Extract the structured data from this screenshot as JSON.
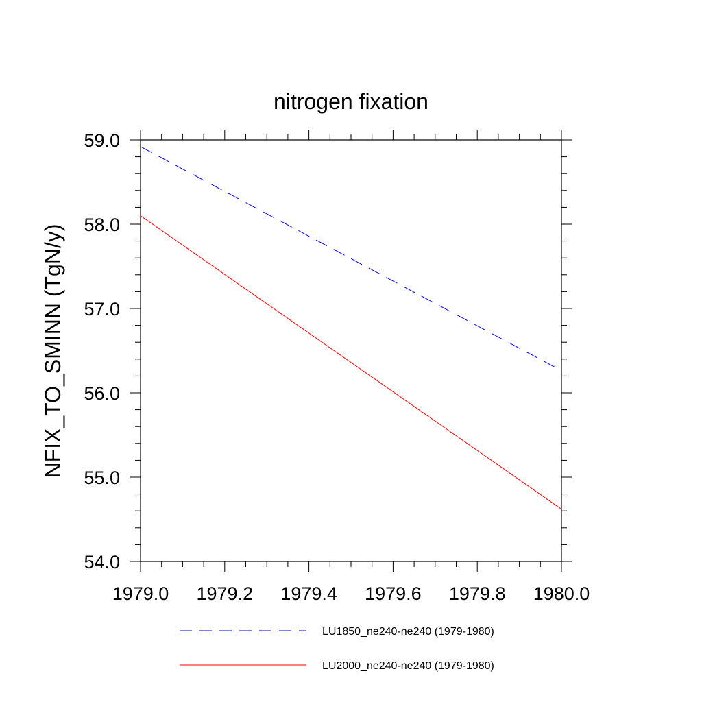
{
  "chart_data": {
    "type": "line",
    "title": "nitrogen fixation",
    "ylabel": "NFIX_TO_SMINN  (TgN/y)",
    "xlabel": "",
    "xlim": [
      1979.0,
      1980.0
    ],
    "ylim": [
      54.0,
      59.0
    ],
    "x_ticks": [
      "1979.0",
      "1979.2",
      "1979.4",
      "1979.6",
      "1979.8",
      "1980.0"
    ],
    "y_ticks": [
      "54.0",
      "55.0",
      "56.0",
      "57.0",
      "58.0",
      "59.0"
    ],
    "grid": false,
    "legend_position": "bottom",
    "series": [
      {
        "name": "LU1850_ne240-ne240 (1979-1980)",
        "color": "#0000ff",
        "dash": "dashed",
        "x": [
          1979.0,
          1979.986
        ],
        "y": [
          58.92,
          56.3
        ]
      },
      {
        "name": "LU2000_ne240-ne240 (1979-1980)",
        "color": "#ff0000",
        "dash": "solid",
        "x": [
          1979.0,
          1980.0
        ],
        "y": [
          58.1,
          54.62
        ]
      }
    ]
  }
}
